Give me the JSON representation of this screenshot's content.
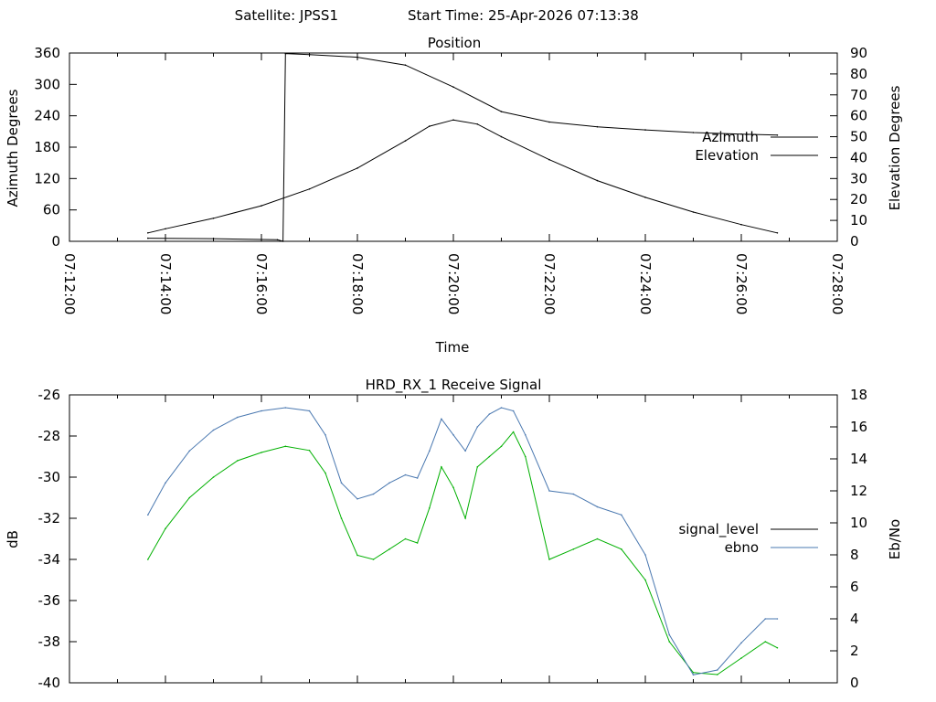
{
  "header": {
    "satellite": "Satellite: JPSS1",
    "start_time": "Start Time: 25-Apr-2026 07:13:38"
  },
  "chart_data": [
    {
      "type": "line",
      "title": "Position",
      "xlabel": "Time",
      "ylabel": "Azimuth Degrees",
      "y2label": "Elevation Degrees",
      "xlim_minutes": [
        "07:12:00",
        "07:28:00"
      ],
      "x_ticks": [
        "07:12:00",
        "07:14:00",
        "07:16:00",
        "07:18:00",
        "07:20:00",
        "07:22:00",
        "07:24:00",
        "07:26:00",
        "07:28:00"
      ],
      "ylim": [
        0,
        360
      ],
      "y_ticks": [
        "0",
        "60",
        "120",
        "180",
        "240",
        "300",
        "360"
      ],
      "y2lim": [
        0,
        90
      ],
      "y2_ticks": [
        "0",
        "10",
        "20",
        "30",
        "40",
        "50",
        "60",
        "70",
        "80",
        "90"
      ],
      "legend_position": "right",
      "colors": {
        "azimuth": "#a52a2a",
        "elevation": "#4a78b0"
      },
      "series": [
        {
          "name": "Azimuth",
          "axis": "left",
          "x": [
            "07:13:38",
            "07:15:00",
            "07:16:20",
            "07:16:27",
            "07:16:30",
            "07:17:00",
            "07:18:00",
            "07:19:00",
            "07:20:00",
            "07:21:00",
            "07:22:00",
            "07:23:00",
            "07:24:00",
            "07:25:00",
            "07:26:00",
            "07:26:45"
          ],
          "values": [
            6,
            5,
            3,
            0,
            359,
            357,
            352,
            337,
            295,
            248,
            228,
            219,
            213,
            208,
            205,
            203
          ]
        },
        {
          "name": "Elevation",
          "axis": "right",
          "x": [
            "07:13:38",
            "07:14:00",
            "07:15:00",
            "07:16:00",
            "07:17:00",
            "07:18:00",
            "07:19:00",
            "07:19:30",
            "07:20:00",
            "07:20:30",
            "07:21:00",
            "07:22:00",
            "07:23:00",
            "07:24:00",
            "07:25:00",
            "07:26:00",
            "07:26:45"
          ],
          "values": [
            4,
            6,
            11,
            17,
            25,
            35,
            48,
            55,
            58,
            56,
            50,
            39,
            29,
            21,
            14,
            8,
            4
          ]
        }
      ]
    },
    {
      "type": "line",
      "title": "HRD_RX_1 Receive Signal",
      "xlabel": "",
      "ylabel": "dB",
      "y2label": "Eb/No",
      "xlim_minutes": [
        "07:12:00",
        "07:28:00"
      ],
      "ylim": [
        -40,
        -26
      ],
      "y_ticks": [
        "-26",
        "-28",
        "-30",
        "-32",
        "-34",
        "-36",
        "-38",
        "-40"
      ],
      "y2lim": [
        0,
        18
      ],
      "y2_ticks": [
        "0",
        "2",
        "4",
        "6",
        "8",
        "10",
        "12",
        "14",
        "16",
        "18"
      ],
      "legend_position": "right",
      "colors": {
        "signal_level": "#00b000",
        "ebno": "#4a78b0",
        "legend_signal_level": "#000000"
      },
      "series": [
        {
          "name": "signal_level",
          "axis": "left",
          "x": [
            "07:13:38",
            "07:14:00",
            "07:14:30",
            "07:15:00",
            "07:15:30",
            "07:16:00",
            "07:16:30",
            "07:17:00",
            "07:17:20",
            "07:17:40",
            "07:18:00",
            "07:18:20",
            "07:18:40",
            "07:19:00",
            "07:19:15",
            "07:19:30",
            "07:19:45",
            "07:20:00",
            "07:20:15",
            "07:20:30",
            "07:20:45",
            "07:21:00",
            "07:21:15",
            "07:21:30",
            "07:22:00",
            "07:22:30",
            "07:23:00",
            "07:23:30",
            "07:24:00",
            "07:24:30",
            "07:25:00",
            "07:25:30",
            "07:26:00",
            "07:26:30",
            "07:26:45"
          ],
          "values": [
            -34.0,
            -32.5,
            -31.0,
            -30.0,
            -29.2,
            -28.8,
            -28.5,
            -28.7,
            -29.8,
            -32.0,
            -33.8,
            -34.0,
            -33.5,
            -33.0,
            -33.2,
            -31.5,
            -29.5,
            -30.5,
            -32.0,
            -29.5,
            -29.0,
            -28.5,
            -27.8,
            -29.0,
            -34.0,
            -33.5,
            -33.0,
            -33.5,
            -35.0,
            -38.0,
            -39.5,
            -39.6,
            -38.8,
            -38.0,
            -38.3
          ]
        },
        {
          "name": "ebno",
          "axis": "right",
          "x": [
            "07:13:38",
            "07:14:00",
            "07:14:30",
            "07:15:00",
            "07:15:30",
            "07:16:00",
            "07:16:30",
            "07:17:00",
            "07:17:20",
            "07:17:40",
            "07:18:00",
            "07:18:20",
            "07:18:40",
            "07:19:00",
            "07:19:15",
            "07:19:30",
            "07:19:45",
            "07:20:00",
            "07:20:15",
            "07:20:30",
            "07:20:45",
            "07:21:00",
            "07:21:15",
            "07:21:30",
            "07:22:00",
            "07:22:30",
            "07:23:00",
            "07:23:30",
            "07:24:00",
            "07:24:30",
            "07:25:00",
            "07:25:30",
            "07:26:00",
            "07:26:30",
            "07:26:45"
          ],
          "values": [
            10.5,
            12.5,
            14.5,
            15.8,
            16.6,
            17.0,
            17.2,
            17.0,
            15.5,
            12.5,
            11.5,
            11.8,
            12.5,
            13.0,
            12.8,
            14.5,
            16.5,
            15.5,
            14.5,
            16.0,
            16.8,
            17.2,
            17.0,
            15.5,
            12.0,
            11.8,
            11.0,
            10.5,
            8.0,
            3.0,
            0.5,
            0.8,
            2.5,
            4.0,
            4.0
          ]
        }
      ]
    }
  ]
}
